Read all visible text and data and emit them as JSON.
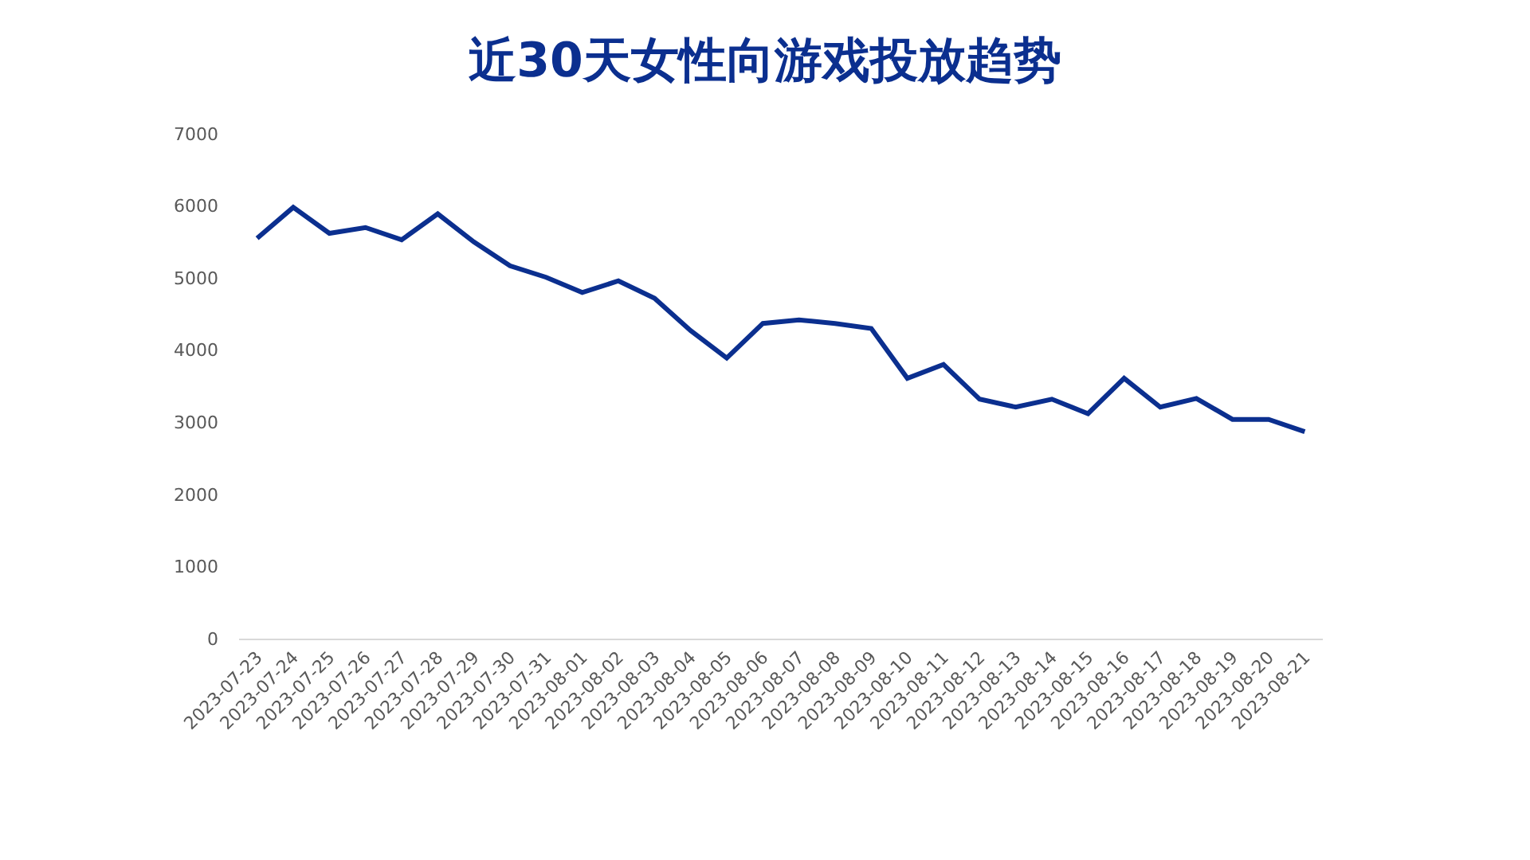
{
  "chart_data": {
    "type": "line",
    "title": "近30天女性向游戏投放趋势",
    "categories": [
      "2023-07-23",
      "2023-07-24",
      "2023-07-25",
      "2023-07-26",
      "2023-07-27",
      "2023-07-28",
      "2023-07-29",
      "2023-07-30",
      "2023-07-31",
      "2023-08-01",
      "2023-08-02",
      "2023-08-03",
      "2023-08-04",
      "2023-08-05",
      "2023-08-06",
      "2023-08-07",
      "2023-08-08",
      "2023-08-09",
      "2023-08-10",
      "2023-08-11",
      "2023-08-12",
      "2023-08-13",
      "2023-08-14",
      "2023-08-15",
      "2023-08-16",
      "2023-08-17",
      "2023-08-18",
      "2023-08-19",
      "2023-08-20",
      "2023-08-21"
    ],
    "series": [
      {
        "color": "#0b2f8f",
        "values": [
          5550,
          5980,
          5620,
          5700,
          5530,
          5890,
          5500,
          5170,
          5010,
          4800,
          4960,
          4720,
          4270,
          3890,
          4370,
          4420,
          4370,
          4300,
          3610,
          3800,
          3320,
          3210,
          3320,
          3120,
          3610,
          3210,
          3330,
          3040,
          3040,
          2870
        ]
      }
    ],
    "ylim": [
      0,
      7000
    ],
    "yticks": [
      0,
      1000,
      2000,
      3000,
      4000,
      5000,
      6000,
      7000
    ],
    "grid": false,
    "marker": "none",
    "line_style": "solid"
  }
}
